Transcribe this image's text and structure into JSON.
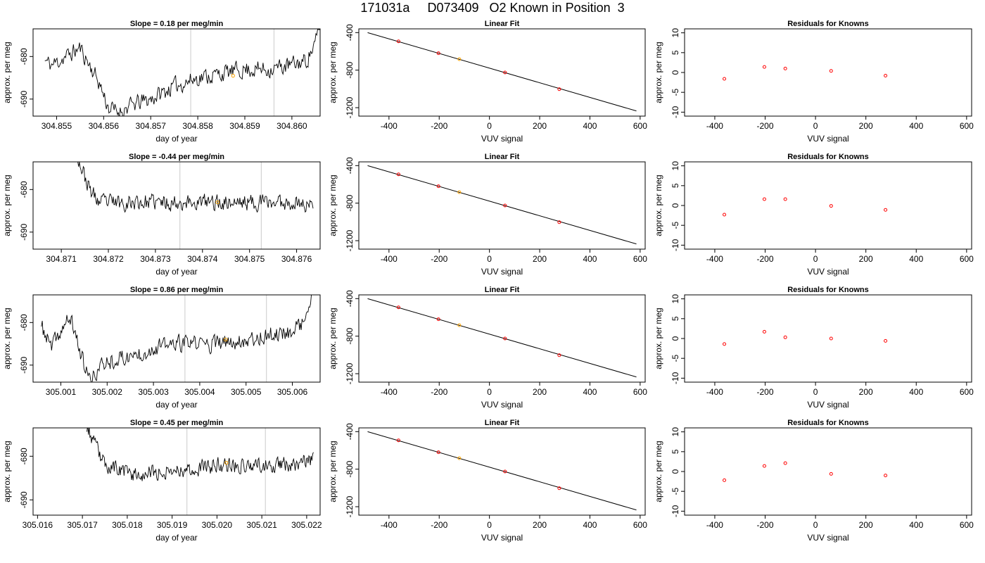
{
  "figure": {
    "title": "171031a     D073409   O2 Known in Position  3"
  },
  "colors": {
    "trace": "#000000",
    "marker": "#ffa500",
    "residual": "#ff0000",
    "known": "#ff0000",
    "vline": "#d3d3d3",
    "axis": "#000000"
  },
  "chart_data": [
    {
      "type": "line",
      "panel": "timeseries",
      "row": 1,
      "title": "Slope =  0.18  per meg/min",
      "xlabel": "day of year",
      "ylabel": "approx. per meg",
      "xlim": [
        304.8545,
        304.8606
      ],
      "ylim": [
        -694,
        -673.5
      ],
      "xticks": [
        "304.855",
        "304.856",
        "304.857",
        "304.858",
        "304.859",
        "304.860"
      ],
      "xtick_values": [
        304.855,
        304.856,
        304.857,
        304.858,
        304.859,
        304.86
      ],
      "yticks": [
        "-680",
        "-690"
      ],
      "ytick_values": [
        -680,
        -690
      ],
      "vlines": [
        304.85785,
        304.85962
      ],
      "marker": {
        "x": 304.85875,
        "y": -684.5
      },
      "seed": 11,
      "trace_x_range": [
        304.85475,
        304.86062
      ],
      "trace_anchors": [
        [
          304.85475,
          -681
        ],
        [
          304.8549,
          -682
        ],
        [
          304.8552,
          -680
        ],
        [
          304.8555,
          -678
        ],
        [
          304.8556,
          -680
        ],
        [
          304.8559,
          -686
        ],
        [
          304.8561,
          -692
        ],
        [
          304.8563,
          -693
        ],
        [
          304.8567,
          -691
        ],
        [
          304.857,
          -690
        ],
        [
          304.8575,
          -687
        ],
        [
          304.858,
          -685
        ],
        [
          304.8585,
          -684
        ],
        [
          304.859,
          -683
        ],
        [
          304.8595,
          -683
        ],
        [
          304.86,
          -682
        ],
        [
          304.8603,
          -681
        ],
        [
          304.8605,
          -677
        ],
        [
          304.86062,
          -672
        ]
      ],
      "noise": 1.8,
      "n": 320
    },
    {
      "type": "scatter",
      "panel": "linear_fit",
      "row": 1,
      "title": "Linear Fit",
      "xlabel": "VUV signal",
      "ylabel": "approx. per meg",
      "xlim": [
        -520,
        620
      ],
      "ylim": [
        -1290,
        -360
      ],
      "xticks": [
        "-400",
        "-200",
        "0",
        "200",
        "400",
        "600"
      ],
      "xtick_values": [
        -400,
        -200,
        0,
        200,
        400,
        600
      ],
      "yticks": [
        "-400",
        "-800",
        "-1200"
      ],
      "ytick_values": [
        -400,
        -800,
        -1200
      ],
      "line": {
        "x": [
          -485,
          585
        ],
        "y": [
          -400,
          -1235
        ]
      },
      "points": [
        [
          -362,
          -493
        ],
        [
          -203,
          -620
        ],
        [
          -120,
          -683
        ],
        [
          62,
          -825
        ],
        [
          278,
          -1003
        ]
      ],
      "highlight_index": 2
    },
    {
      "type": "scatter",
      "panel": "residuals",
      "row": 1,
      "title": "Residuals for Knowns",
      "xlabel": "VUV signal",
      "ylabel": "approx. per meg",
      "xlim": [
        -520,
        620
      ],
      "ylim": [
        -11,
        11
      ],
      "xticks": [
        "-400",
        "-200",
        "0",
        "200",
        "400",
        "600"
      ],
      "xtick_values": [
        -400,
        -200,
        0,
        200,
        400,
        600
      ],
      "yticks": [
        "-10",
        "-5",
        "0",
        "5",
        "10"
      ],
      "ytick_values": [
        -10,
        -5,
        0,
        5,
        10
      ],
      "points": [
        [
          -362,
          -1.6
        ],
        [
          -203,
          1.4
        ],
        [
          -120,
          1.0
        ],
        [
          62,
          0.4
        ],
        [
          278,
          -0.8
        ]
      ]
    },
    {
      "type": "line",
      "panel": "timeseries",
      "row": 2,
      "title": "Slope =  -0.44  per meg/min",
      "xlabel": "day of year",
      "ylabel": "approx. per meg",
      "xlim": [
        304.8704,
        304.8765
      ],
      "ylim": [
        -694,
        -673.5
      ],
      "xticks": [
        "304.871",
        "304.872",
        "304.873",
        "304.874",
        "304.875",
        "304.876"
      ],
      "xtick_values": [
        304.871,
        304.872,
        304.873,
        304.874,
        304.875,
        304.876
      ],
      "yticks": [
        "-680",
        "-690"
      ],
      "ytick_values": [
        -680,
        -690
      ],
      "vlines": [
        304.87352,
        304.87525
      ],
      "marker": {
        "x": 304.87432,
        "y": -683
      },
      "seed": 23,
      "trace_x_range": [
        304.87135,
        304.87635
      ],
      "trace_anchors": [
        [
          304.87135,
          -672
        ],
        [
          304.8714,
          -674
        ],
        [
          304.8716,
          -680
        ],
        [
          304.8718,
          -683
        ],
        [
          304.872,
          -683
        ],
        [
          304.873,
          -683
        ],
        [
          304.874,
          -683
        ],
        [
          304.875,
          -683
        ],
        [
          304.876,
          -683
        ],
        [
          304.87635,
          -684
        ]
      ],
      "noise": 1.7,
      "n": 300
    },
    {
      "type": "scatter",
      "panel": "linear_fit",
      "row": 2,
      "title": "Linear Fit",
      "xlabel": "VUV signal",
      "ylabel": "approx. per meg",
      "xlim": [
        -520,
        620
      ],
      "ylim": [
        -1290,
        -360
      ],
      "xticks": [
        "-400",
        "-200",
        "0",
        "200",
        "400",
        "600"
      ],
      "xtick_values": [
        -400,
        -200,
        0,
        200,
        400,
        600
      ],
      "yticks": [
        "-400",
        "-800",
        "-1200"
      ],
      "ytick_values": [
        -400,
        -800,
        -1200
      ],
      "line": {
        "x": [
          -485,
          585
        ],
        "y": [
          -400,
          -1235
        ]
      },
      "points": [
        [
          -362,
          -493
        ],
        [
          -203,
          -620
        ],
        [
          -120,
          -683
        ],
        [
          62,
          -825
        ],
        [
          278,
          -1003
        ]
      ],
      "highlight_index": 2
    },
    {
      "type": "scatter",
      "panel": "residuals",
      "row": 2,
      "title": "Residuals for Knowns",
      "xlabel": "VUV signal",
      "ylabel": "approx. per meg",
      "xlim": [
        -520,
        620
      ],
      "ylim": [
        -11,
        11
      ],
      "xticks": [
        "-400",
        "-200",
        "0",
        "200",
        "400",
        "600"
      ],
      "xtick_values": [
        -400,
        -200,
        0,
        200,
        400,
        600
      ],
      "yticks": [
        "-10",
        "-5",
        "0",
        "5",
        "10"
      ],
      "ytick_values": [
        -10,
        -5,
        0,
        5,
        10
      ],
      "points": [
        [
          -362,
          -2.3
        ],
        [
          -203,
          1.6
        ],
        [
          -120,
          1.6
        ],
        [
          62,
          -0.1
        ],
        [
          278,
          -1.1
        ]
      ]
    },
    {
      "type": "line",
      "panel": "timeseries",
      "row": 3,
      "title": "Slope =  0.86  per meg/min",
      "xlabel": "day of year",
      "ylabel": "approx. per meg",
      "xlim": [
        305.0004,
        305.0066
      ],
      "ylim": [
        -694,
        -673.5
      ],
      "xticks": [
        "305.001",
        "305.002",
        "305.003",
        "305.004",
        "305.005",
        "305.006"
      ],
      "xtick_values": [
        305.001,
        305.002,
        305.003,
        305.004,
        305.005,
        305.006
      ],
      "yticks": [
        "-680",
        "-690"
      ],
      "ytick_values": [
        -680,
        -690
      ],
      "vlines": [
        305.00368,
        305.00544
      ],
      "marker": {
        "x": 305.00456,
        "y": -684
      },
      "seed": 37,
      "trace_x_range": [
        305.00058,
        305.00643
      ],
      "trace_anchors": [
        [
          305.00058,
          -681
        ],
        [
          305.0008,
          -686
        ],
        [
          305.001,
          -682
        ],
        [
          305.0012,
          -679
        ],
        [
          305.0013,
          -682
        ],
        [
          305.0015,
          -690
        ],
        [
          305.00165,
          -694
        ],
        [
          305.0018,
          -691
        ],
        [
          305.002,
          -689
        ],
        [
          305.0025,
          -688
        ],
        [
          305.003,
          -686
        ],
        [
          305.0035,
          -685
        ],
        [
          305.004,
          -685
        ],
        [
          305.0045,
          -685
        ],
        [
          305.005,
          -684
        ],
        [
          305.0055,
          -683
        ],
        [
          305.006,
          -682
        ],
        [
          305.0063,
          -679
        ],
        [
          305.00643,
          -673
        ]
      ],
      "noise": 1.8,
      "n": 320
    },
    {
      "type": "scatter",
      "panel": "linear_fit",
      "row": 3,
      "title": "Linear Fit",
      "xlabel": "VUV signal",
      "ylabel": "approx. per meg",
      "xlim": [
        -520,
        620
      ],
      "ylim": [
        -1290,
        -360
      ],
      "xticks": [
        "-400",
        "-200",
        "0",
        "200",
        "400",
        "600"
      ],
      "xtick_values": [
        -400,
        -200,
        0,
        200,
        400,
        600
      ],
      "yticks": [
        "-400",
        "-800",
        "-1200"
      ],
      "ytick_values": [
        -400,
        -800,
        -1200
      ],
      "line": {
        "x": [
          -485,
          585
        ],
        "y": [
          -400,
          -1235
        ]
      },
      "points": [
        [
          -362,
          -493
        ],
        [
          -203,
          -620
        ],
        [
          -120,
          -683
        ],
        [
          62,
          -825
        ],
        [
          278,
          -1003
        ]
      ],
      "highlight_index": 2
    },
    {
      "type": "scatter",
      "panel": "residuals",
      "row": 3,
      "title": "Residuals for Knowns",
      "xlabel": "VUV signal",
      "ylabel": "approx. per meg",
      "xlim": [
        -520,
        620
      ],
      "ylim": [
        -11,
        11
      ],
      "xticks": [
        "-400",
        "-200",
        "0",
        "200",
        "400",
        "600"
      ],
      "xtick_values": [
        -400,
        -200,
        0,
        200,
        400,
        600
      ],
      "yticks": [
        "-10",
        "-5",
        "0",
        "5",
        "10"
      ],
      "ytick_values": [
        -10,
        -5,
        0,
        5,
        10
      ],
      "points": [
        [
          -362,
          -1.4
        ],
        [
          -203,
          1.7
        ],
        [
          -120,
          0.3
        ],
        [
          62,
          0.0
        ],
        [
          278,
          -0.6
        ]
      ]
    },
    {
      "type": "line",
      "panel": "timeseries",
      "row": 4,
      "title": "Slope =  0.45  per meg/min",
      "xlabel": "day of year",
      "ylabel": "approx. per meg",
      "xlim": [
        305.0159,
        305.0223
      ],
      "ylim": [
        -693.5,
        -673.5
      ],
      "xticks": [
        "305.016",
        "305.017",
        "305.018",
        "305.019",
        "305.020",
        "305.021",
        "305.022"
      ],
      "xtick_values": [
        305.016,
        305.017,
        305.018,
        305.019,
        305.02,
        305.021,
        305.022
      ],
      "yticks": [
        "-680",
        "-690"
      ],
      "ytick_values": [
        -680,
        -690
      ],
      "vlines": [
        305.01933,
        305.02108
      ],
      "marker": {
        "x": 305.02021,
        "y": -681.5
      },
      "seed": 53,
      "trace_x_range": [
        305.0171,
        305.02215
      ],
      "trace_anchors": [
        [
          305.0171,
          -673
        ],
        [
          305.0173,
          -678
        ],
        [
          305.0175,
          -682
        ],
        [
          305.0178,
          -683
        ],
        [
          305.018,
          -684
        ],
        [
          305.0185,
          -684
        ],
        [
          305.019,
          -683
        ],
        [
          305.0195,
          -683
        ],
        [
          305.02,
          -682
        ],
        [
          305.0205,
          -682
        ],
        [
          305.021,
          -682
        ],
        [
          305.0215,
          -682
        ],
        [
          305.02215,
          -681
        ]
      ],
      "noise": 1.6,
      "n": 300
    },
    {
      "type": "scatter",
      "panel": "linear_fit",
      "row": 4,
      "title": "Linear Fit",
      "xlabel": "VUV signal",
      "ylabel": "approx. per meg",
      "xlim": [
        -520,
        620
      ],
      "ylim": [
        -1290,
        -360
      ],
      "xticks": [
        "-400",
        "-200",
        "0",
        "200",
        "400",
        "600"
      ],
      "xtick_values": [
        -400,
        -200,
        0,
        200,
        400,
        600
      ],
      "yticks": [
        "-400",
        "-800",
        "-1200"
      ],
      "ytick_values": [
        -400,
        -800,
        -1200
      ],
      "line": {
        "x": [
          -485,
          585
        ],
        "y": [
          -400,
          -1235
        ]
      },
      "points": [
        [
          -362,
          -493
        ],
        [
          -203,
          -620
        ],
        [
          -120,
          -683
        ],
        [
          62,
          -825
        ],
        [
          278,
          -1003
        ]
      ],
      "highlight_index": 2
    },
    {
      "type": "scatter",
      "panel": "residuals",
      "row": 4,
      "title": "Residuals for Knowns",
      "xlabel": "VUV signal",
      "ylabel": "approx. per meg",
      "xlim": [
        -520,
        620
      ],
      "ylim": [
        -11,
        11
      ],
      "xticks": [
        "-400",
        "-200",
        "0",
        "200",
        "400",
        "600"
      ],
      "xtick_values": [
        -400,
        -200,
        0,
        200,
        400,
        600
      ],
      "yticks": [
        "-10",
        "-5",
        "0",
        "5",
        "10"
      ],
      "ytick_values": [
        -10,
        -5,
        0,
        5,
        10
      ],
      "points": [
        [
          -362,
          -2.2
        ],
        [
          -203,
          1.4
        ],
        [
          -120,
          2.1
        ],
        [
          62,
          -0.6
        ],
        [
          278,
          -1.0
        ]
      ]
    }
  ]
}
